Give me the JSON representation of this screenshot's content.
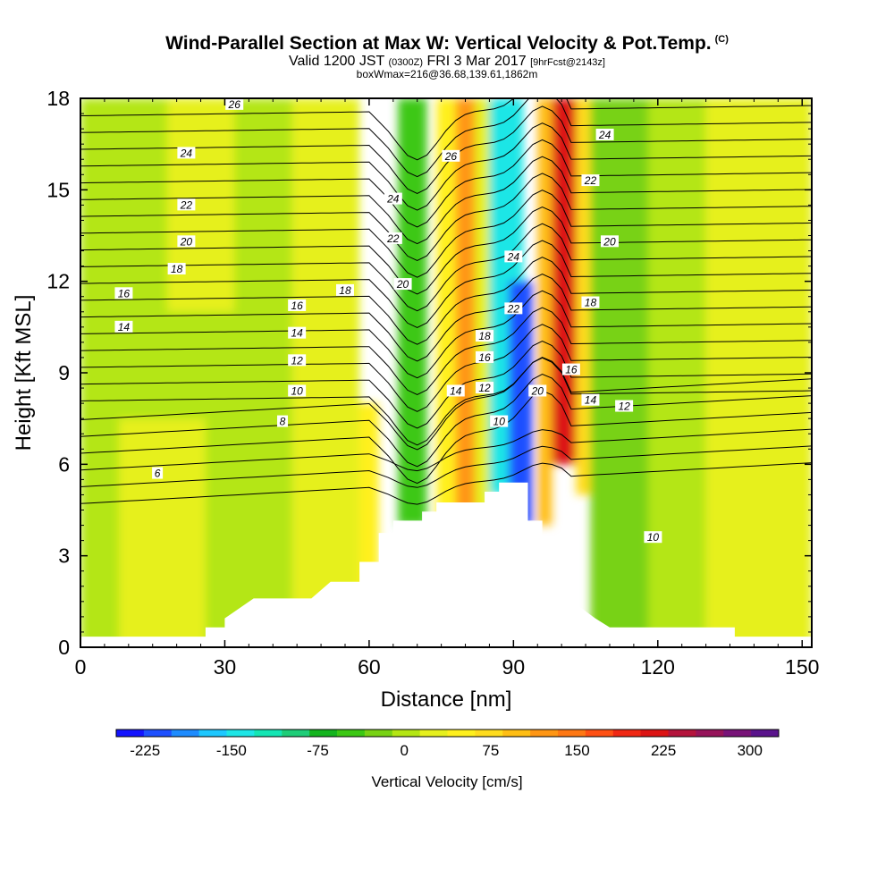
{
  "title": {
    "main": "Wind-Parallel Section at Max W: Vertical Velocity & Pot.Temp.",
    "copyright": "(C)",
    "valid_prefix": "Valid 1200 JST",
    "utc": "(0300Z)",
    "valid_date": "FRI 3 Mar 2017",
    "fcst": "[9hrFcst@2143z]",
    "box": "boxWmax=216@36.68,139.61,1862m"
  },
  "chart_data": {
    "type": "heatmap",
    "xlabel": "Distance [nm]",
    "ylabel": "Height [Kft MSL]",
    "xlim": [
      0,
      152
    ],
    "ylim": [
      0,
      18
    ],
    "x_ticks": [
      0,
      30,
      60,
      90,
      120,
      150
    ],
    "y_ticks": [
      0,
      3,
      6,
      9,
      12,
      15,
      18
    ],
    "colorbar": {
      "label": "Vertical Velocity [cm/s]",
      "tick_values": [
        -225,
        -150,
        -75,
        0,
        75,
        150,
        225,
        300
      ],
      "tick_labels": [
        "-225",
        "-150",
        "-75",
        "0",
        "75",
        "150",
        "225",
        "300"
      ],
      "range": [
        -250,
        325
      ],
      "colors": [
        "#1414ff",
        "#1e50ff",
        "#1e8cff",
        "#1ec8ff",
        "#1ee6e6",
        "#14e6b4",
        "#1ecd78",
        "#14b41e",
        "#3cc814",
        "#78d214",
        "#b4e614",
        "#e6f01e",
        "#fff01e",
        "#ffdc1e",
        "#ffbe14",
        "#ff9614",
        "#ff7814",
        "#ff5014",
        "#f02814",
        "#dc1414",
        "#b4143c",
        "#96145a",
        "#781478",
        "#5a148c"
      ]
    },
    "terrain_profile": [
      {
        "x": 0,
        "y": 0.35
      },
      {
        "x": 26,
        "y": 0.35
      },
      {
        "x": 26,
        "y": 0.65
      },
      {
        "x": 30,
        "y": 0.65
      },
      {
        "x": 30,
        "y": 0.95
      },
      {
        "x": 36,
        "y": 1.6
      },
      {
        "x": 48,
        "y": 1.6
      },
      {
        "x": 52,
        "y": 2.15
      },
      {
        "x": 58,
        "y": 2.15
      },
      {
        "x": 58,
        "y": 2.8
      },
      {
        "x": 62,
        "y": 2.8
      },
      {
        "x": 62,
        "y": 3.75
      },
      {
        "x": 65,
        "y": 3.75
      },
      {
        "x": 65,
        "y": 4.15
      },
      {
        "x": 71,
        "y": 4.15
      },
      {
        "x": 71,
        "y": 4.45
      },
      {
        "x": 74,
        "y": 4.45
      },
      {
        "x": 74,
        "y": 4.75
      },
      {
        "x": 84,
        "y": 4.75
      },
      {
        "x": 84,
        "y": 5.1
      },
      {
        "x": 87,
        "y": 5.1
      },
      {
        "x": 87,
        "y": 5.4
      },
      {
        "x": 93,
        "y": 5.4
      },
      {
        "x": 93,
        "y": 4.15
      },
      {
        "x": 96,
        "y": 4.15
      },
      {
        "x": 96,
        "y": 2.85
      },
      {
        "x": 100,
        "y": 2.85
      },
      {
        "x": 100,
        "y": 1.9
      },
      {
        "x": 104,
        "y": 1.3
      },
      {
        "x": 107,
        "y": 0.95
      },
      {
        "x": 110,
        "y": 0.65
      },
      {
        "x": 136,
        "y": 0.65
      },
      {
        "x": 136,
        "y": 0.35
      },
      {
        "x": 152,
        "y": 0.35
      }
    ],
    "w_field_bands": [
      {
        "x0": 0,
        "x1": 44,
        "y0": 0,
        "y1": 18,
        "value": 0
      },
      {
        "x0": 8,
        "x1": 26,
        "y0": 0,
        "y1": 7.5,
        "value": 25
      },
      {
        "x0": 18,
        "x1": 32,
        "y0": 11,
        "y1": 18,
        "value": 25
      },
      {
        "x0": 44,
        "x1": 58,
        "y0": 0,
        "y1": 18,
        "value": 25
      },
      {
        "x0": 58,
        "x1": 62,
        "y0": 0,
        "y1": 8,
        "value": 50
      },
      {
        "x0": 66,
        "x1": 72,
        "y0": 4,
        "y1": 18,
        "value": -50
      },
      {
        "x0": 74,
        "x1": 78,
        "y0": 4,
        "y1": 18,
        "value": 50
      },
      {
        "x0": 78,
        "x1": 82,
        "y0": 4,
        "y1": 18,
        "value": 125
      },
      {
        "x0": 82,
        "x1": 85,
        "y0": 4,
        "y1": 18,
        "value": 25
      },
      {
        "x0": 85,
        "x1": 92,
        "y0": 5,
        "y1": 18,
        "value": -150
      },
      {
        "x0": 89,
        "x1": 94,
        "y0": 4,
        "y1": 12,
        "value": -225
      },
      {
        "x0": 95,
        "x1": 98,
        "y0": 4,
        "y1": 18,
        "value": 100
      },
      {
        "x0": 98,
        "x1": 103,
        "y0": 6,
        "y1": 18,
        "value": 225
      },
      {
        "x0": 103,
        "x1": 106,
        "y0": 5,
        "y1": 18,
        "value": 75
      },
      {
        "x0": 106,
        "x1": 118,
        "y0": 0,
        "y1": 18,
        "value": -25
      },
      {
        "x0": 118,
        "x1": 130,
        "y0": 0,
        "y1": 18,
        "value": 0
      },
      {
        "x0": 130,
        "x1": 152,
        "y0": 0,
        "y1": 18,
        "value": 25
      }
    ],
    "theta_contour_labels": [
      {
        "text": "26",
        "x": 32,
        "y": 17.8
      },
      {
        "text": "24",
        "x": 22,
        "y": 16.2
      },
      {
        "text": "22",
        "x": 22,
        "y": 14.5
      },
      {
        "text": "20",
        "x": 22,
        "y": 13.3
      },
      {
        "text": "18",
        "x": 20,
        "y": 12.4
      },
      {
        "text": "16",
        "x": 9,
        "y": 11.6
      },
      {
        "text": "14",
        "x": 9,
        "y": 10.5
      },
      {
        "text": "18",
        "x": 55,
        "y": 11.7
      },
      {
        "text": "16",
        "x": 45,
        "y": 11.2
      },
      {
        "text": "14",
        "x": 45,
        "y": 10.3
      },
      {
        "text": "12",
        "x": 45,
        "y": 9.4
      },
      {
        "text": "10",
        "x": 45,
        "y": 8.4
      },
      {
        "text": "8",
        "x": 42,
        "y": 7.4
      },
      {
        "text": "6",
        "x": 16,
        "y": 5.7
      },
      {
        "text": "24",
        "x": 65,
        "y": 14.7
      },
      {
        "text": "22",
        "x": 65,
        "y": 13.4
      },
      {
        "text": "20",
        "x": 67,
        "y": 11.9
      },
      {
        "text": "26",
        "x": 77,
        "y": 16.1
      },
      {
        "text": "18",
        "x": 84,
        "y": 10.2
      },
      {
        "text": "16",
        "x": 84,
        "y": 9.5
      },
      {
        "text": "14",
        "x": 78,
        "y": 8.4
      },
      {
        "text": "12",
        "x": 84,
        "y": 8.5
      },
      {
        "text": "10",
        "x": 87,
        "y": 7.4
      },
      {
        "text": "24",
        "x": 90,
        "y": 12.8
      },
      {
        "text": "22",
        "x": 90,
        "y": 11.1
      },
      {
        "text": "20",
        "x": 95,
        "y": 8.4
      },
      {
        "text": "16",
        "x": 102,
        "y": 9.1
      },
      {
        "text": "24",
        "x": 109,
        "y": 16.8
      },
      {
        "text": "22",
        "x": 106,
        "y": 15.3
      },
      {
        "text": "20",
        "x": 110,
        "y": 13.3
      },
      {
        "text": "18",
        "x": 106,
        "y": 11.3
      },
      {
        "text": "14",
        "x": 106,
        "y": 8.1
      },
      {
        "text": "12",
        "x": 113,
        "y": 7.9
      },
      {
        "text": "10",
        "x": 119,
        "y": 3.6
      }
    ]
  }
}
